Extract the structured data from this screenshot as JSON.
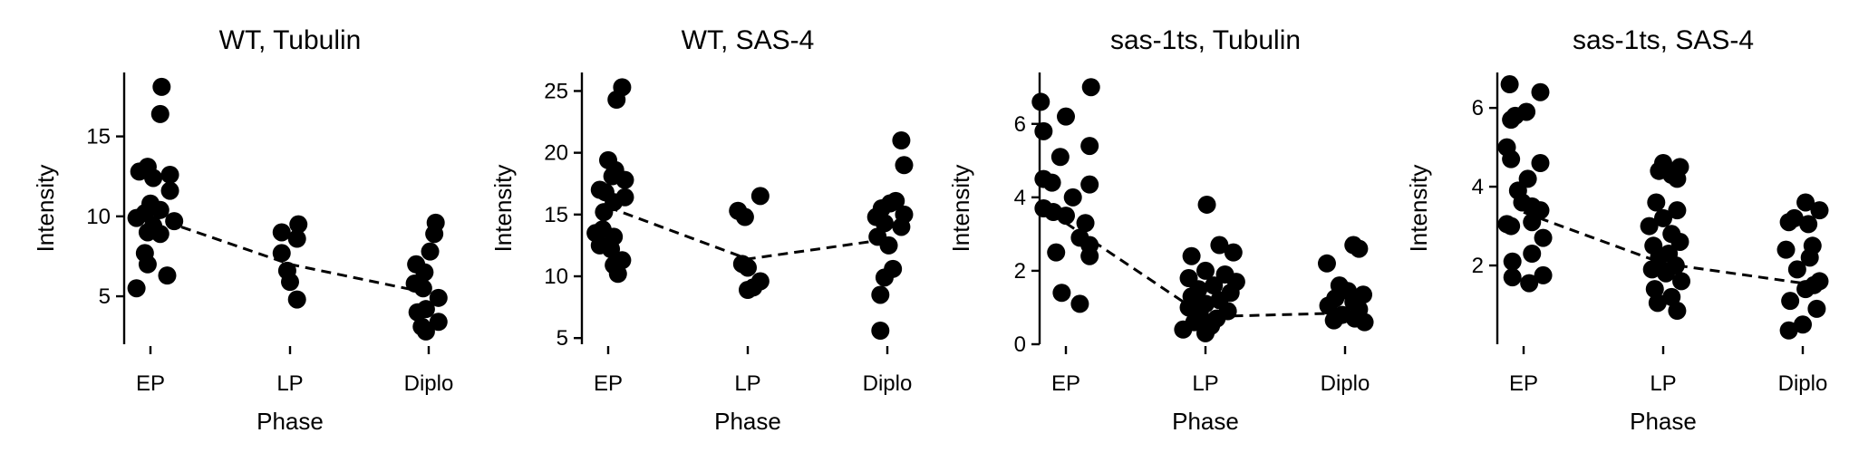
{
  "colors": {
    "points": "#000000",
    "axis": "#000000",
    "trend": "#000000"
  },
  "chart_data": [
    {
      "type": "scatter",
      "title": "WT, Tubulin",
      "xlabel": "Phase",
      "ylabel": "Intensity",
      "categories": [
        "EP",
        "LP",
        "Diplo"
      ],
      "ylim": [
        2.0,
        19.0
      ],
      "yticks": [
        5,
        10,
        15
      ],
      "trend_means": [
        10.0,
        7.0,
        5.2
      ],
      "points": [
        {
          "cat": 0,
          "y": 18.1,
          "j": 0.08
        },
        {
          "cat": 0,
          "y": 16.4,
          "j": 0.07
        },
        {
          "cat": 0,
          "y": 13.1,
          "j": -0.02
        },
        {
          "cat": 0,
          "y": 12.8,
          "j": -0.08
        },
        {
          "cat": 0,
          "y": 12.6,
          "j": 0.14
        },
        {
          "cat": 0,
          "y": 12.4,
          "j": 0.02
        },
        {
          "cat": 0,
          "y": 11.6,
          "j": 0.14
        },
        {
          "cat": 0,
          "y": 10.8,
          "j": 0.0
        },
        {
          "cat": 0,
          "y": 10.4,
          "j": 0.07
        },
        {
          "cat": 0,
          "y": 10.2,
          "j": -0.04
        },
        {
          "cat": 0,
          "y": 9.9,
          "j": -0.1
        },
        {
          "cat": 0,
          "y": 9.7,
          "j": 0.17
        },
        {
          "cat": 0,
          "y": 9.4,
          "j": 0.02
        },
        {
          "cat": 0,
          "y": 9.0,
          "j": -0.02
        },
        {
          "cat": 0,
          "y": 8.9,
          "j": 0.07
        },
        {
          "cat": 0,
          "y": 7.7,
          "j": -0.04
        },
        {
          "cat": 0,
          "y": 7.0,
          "j": -0.02
        },
        {
          "cat": 0,
          "y": 6.3,
          "j": 0.12
        },
        {
          "cat": 0,
          "y": 5.5,
          "j": -0.1
        },
        {
          "cat": 1,
          "y": 9.5,
          "j": 0.06
        },
        {
          "cat": 1,
          "y": 9.0,
          "j": -0.06
        },
        {
          "cat": 1,
          "y": 8.6,
          "j": 0.05
        },
        {
          "cat": 1,
          "y": 7.7,
          "j": -0.06
        },
        {
          "cat": 1,
          "y": 6.6,
          "j": -0.02
        },
        {
          "cat": 1,
          "y": 5.9,
          "j": 0.0
        },
        {
          "cat": 1,
          "y": 4.8,
          "j": 0.05
        },
        {
          "cat": 2,
          "y": 9.6,
          "j": 0.05
        },
        {
          "cat": 2,
          "y": 8.9,
          "j": 0.04
        },
        {
          "cat": 2,
          "y": 7.8,
          "j": 0.01
        },
        {
          "cat": 2,
          "y": 7.0,
          "j": -0.09
        },
        {
          "cat": 2,
          "y": 6.5,
          "j": -0.03
        },
        {
          "cat": 2,
          "y": 5.8,
          "j": -0.1
        },
        {
          "cat": 2,
          "y": 5.5,
          "j": -0.04
        },
        {
          "cat": 2,
          "y": 4.9,
          "j": 0.07
        },
        {
          "cat": 2,
          "y": 4.2,
          "j": -0.02
        },
        {
          "cat": 2,
          "y": 4.0,
          "j": -0.08
        },
        {
          "cat": 2,
          "y": 3.4,
          "j": 0.07
        },
        {
          "cat": 2,
          "y": 3.1,
          "j": -0.05
        },
        {
          "cat": 2,
          "y": 2.8,
          "j": -0.02
        }
      ]
    },
    {
      "type": "scatter",
      "title": "WT, SAS-4",
      "xlabel": "Phase",
      "ylabel": "Intensity",
      "categories": [
        "EP",
        "LP",
        "Diplo"
      ],
      "ylim": [
        4.5,
        26.5
      ],
      "yticks": [
        5,
        10,
        15,
        20,
        25
      ],
      "trend_means": [
        15.6,
        11.4,
        13.0
      ],
      "points": [
        {
          "cat": 0,
          "y": 25.3,
          "j": 0.1
        },
        {
          "cat": 0,
          "y": 24.3,
          "j": 0.06
        },
        {
          "cat": 0,
          "y": 19.4,
          "j": 0.0
        },
        {
          "cat": 0,
          "y": 18.6,
          "j": 0.05
        },
        {
          "cat": 0,
          "y": 18.1,
          "j": 0.03
        },
        {
          "cat": 0,
          "y": 17.8,
          "j": 0.12
        },
        {
          "cat": 0,
          "y": 17.0,
          "j": -0.06
        },
        {
          "cat": 0,
          "y": 16.8,
          "j": -0.02
        },
        {
          "cat": 0,
          "y": 16.4,
          "j": 0.12
        },
        {
          "cat": 0,
          "y": 16.0,
          "j": 0.04
        },
        {
          "cat": 0,
          "y": 15.2,
          "j": -0.03
        },
        {
          "cat": 0,
          "y": 13.8,
          "j": -0.04
        },
        {
          "cat": 0,
          "y": 13.5,
          "j": -0.09
        },
        {
          "cat": 0,
          "y": 13.2,
          "j": 0.04
        },
        {
          "cat": 0,
          "y": 12.5,
          "j": -0.06
        },
        {
          "cat": 0,
          "y": 12.2,
          "j": 0.02
        },
        {
          "cat": 0,
          "y": 11.3,
          "j": 0.1
        },
        {
          "cat": 0,
          "y": 10.9,
          "j": 0.04
        },
        {
          "cat": 0,
          "y": 10.2,
          "j": 0.07
        },
        {
          "cat": 1,
          "y": 16.5,
          "j": 0.09
        },
        {
          "cat": 1,
          "y": 15.3,
          "j": -0.07
        },
        {
          "cat": 1,
          "y": 14.8,
          "j": -0.02
        },
        {
          "cat": 1,
          "y": 11.0,
          "j": -0.04
        },
        {
          "cat": 1,
          "y": 10.7,
          "j": 0.0
        },
        {
          "cat": 1,
          "y": 9.6,
          "j": 0.09
        },
        {
          "cat": 1,
          "y": 9.1,
          "j": 0.04
        },
        {
          "cat": 1,
          "y": 8.9,
          "j": 0.0
        },
        {
          "cat": 2,
          "y": 21.0,
          "j": 0.1
        },
        {
          "cat": 2,
          "y": 19.0,
          "j": 0.12
        },
        {
          "cat": 2,
          "y": 16.1,
          "j": 0.06
        },
        {
          "cat": 2,
          "y": 15.9,
          "j": 0.02
        },
        {
          "cat": 2,
          "y": 15.5,
          "j": -0.04
        },
        {
          "cat": 2,
          "y": 15.0,
          "j": 0.12
        },
        {
          "cat": 2,
          "y": 14.8,
          "j": -0.08
        },
        {
          "cat": 2,
          "y": 14.3,
          "j": -0.02
        },
        {
          "cat": 2,
          "y": 14.0,
          "j": 0.1
        },
        {
          "cat": 2,
          "y": 13.2,
          "j": -0.07
        },
        {
          "cat": 2,
          "y": 12.5,
          "j": 0.01
        },
        {
          "cat": 2,
          "y": 10.6,
          "j": 0.04
        },
        {
          "cat": 2,
          "y": 9.9,
          "j": -0.02
        },
        {
          "cat": 2,
          "y": 8.5,
          "j": -0.05
        },
        {
          "cat": 2,
          "y": 5.6,
          "j": -0.05
        }
      ]
    },
    {
      "type": "scatter",
      "title": "sas-1ts, Tubulin",
      "xlabel": "Phase",
      "ylabel": "Intensity",
      "categories": [
        "EP",
        "LP",
        "Diplo"
      ],
      "ylim": [
        0.0,
        7.4
      ],
      "yticks": [
        0,
        2,
        4,
        6
      ],
      "trend_means": [
        3.3,
        0.75,
        0.85
      ],
      "points": [
        {
          "cat": 0,
          "y": 7.0,
          "j": 0.18
        },
        {
          "cat": 0,
          "y": 6.6,
          "j": -0.18
        },
        {
          "cat": 0,
          "y": 6.2,
          "j": 0.0
        },
        {
          "cat": 0,
          "y": 5.8,
          "j": -0.16
        },
        {
          "cat": 0,
          "y": 5.4,
          "j": 0.17
        },
        {
          "cat": 0,
          "y": 5.1,
          "j": -0.04
        },
        {
          "cat": 0,
          "y": 4.5,
          "j": -0.16
        },
        {
          "cat": 0,
          "y": 4.4,
          "j": -0.1
        },
        {
          "cat": 0,
          "y": 4.35,
          "j": 0.17
        },
        {
          "cat": 0,
          "y": 4.0,
          "j": 0.05
        },
        {
          "cat": 0,
          "y": 3.7,
          "j": -0.16
        },
        {
          "cat": 0,
          "y": 3.6,
          "j": -0.09
        },
        {
          "cat": 0,
          "y": 3.5,
          "j": 0.0
        },
        {
          "cat": 0,
          "y": 3.3,
          "j": 0.14
        },
        {
          "cat": 0,
          "y": 2.9,
          "j": 0.1
        },
        {
          "cat": 0,
          "y": 2.7,
          "j": 0.17
        },
        {
          "cat": 0,
          "y": 2.5,
          "j": -0.07
        },
        {
          "cat": 0,
          "y": 2.4,
          "j": 0.17
        },
        {
          "cat": 0,
          "y": 1.4,
          "j": -0.03
        },
        {
          "cat": 0,
          "y": 1.1,
          "j": 0.1
        },
        {
          "cat": 1,
          "y": 3.8,
          "j": 0.01
        },
        {
          "cat": 1,
          "y": 2.7,
          "j": 0.1
        },
        {
          "cat": 1,
          "y": 2.5,
          "j": 0.2
        },
        {
          "cat": 1,
          "y": 2.4,
          "j": -0.1
        },
        {
          "cat": 1,
          "y": 2.0,
          "j": 0.0
        },
        {
          "cat": 1,
          "y": 1.9,
          "j": 0.14
        },
        {
          "cat": 1,
          "y": 1.8,
          "j": -0.12
        },
        {
          "cat": 1,
          "y": 1.7,
          "j": 0.22
        },
        {
          "cat": 1,
          "y": 1.6,
          "j": 0.06
        },
        {
          "cat": 1,
          "y": 1.5,
          "j": -0.05
        },
        {
          "cat": 1,
          "y": 1.4,
          "j": 0.18
        },
        {
          "cat": 1,
          "y": 1.3,
          "j": -0.1
        },
        {
          "cat": 1,
          "y": 1.2,
          "j": 0.1
        },
        {
          "cat": 1,
          "y": 1.1,
          "j": 0.0
        },
        {
          "cat": 1,
          "y": 1.0,
          "j": -0.12
        },
        {
          "cat": 1,
          "y": 0.9,
          "j": 0.16
        },
        {
          "cat": 1,
          "y": 0.8,
          "j": -0.04
        },
        {
          "cat": 1,
          "y": 0.7,
          "j": 0.08
        },
        {
          "cat": 1,
          "y": 0.6,
          "j": -0.08
        },
        {
          "cat": 1,
          "y": 0.5,
          "j": 0.04
        },
        {
          "cat": 1,
          "y": 0.4,
          "j": -0.16
        },
        {
          "cat": 1,
          "y": 0.3,
          "j": 0.0
        },
        {
          "cat": 2,
          "y": 2.7,
          "j": 0.06
        },
        {
          "cat": 2,
          "y": 2.6,
          "j": 0.1
        },
        {
          "cat": 2,
          "y": 2.2,
          "j": -0.13
        },
        {
          "cat": 2,
          "y": 1.6,
          "j": -0.04
        },
        {
          "cat": 2,
          "y": 1.45,
          "j": 0.02
        },
        {
          "cat": 2,
          "y": 1.35,
          "j": 0.13
        },
        {
          "cat": 2,
          "y": 1.25,
          "j": -0.07
        },
        {
          "cat": 2,
          "y": 1.15,
          "j": 0.06
        },
        {
          "cat": 2,
          "y": 1.05,
          "j": -0.12
        },
        {
          "cat": 2,
          "y": 0.95,
          "j": 0.1
        },
        {
          "cat": 2,
          "y": 0.8,
          "j": -0.02
        },
        {
          "cat": 2,
          "y": 0.7,
          "j": 0.07
        },
        {
          "cat": 2,
          "y": 0.65,
          "j": -0.08
        },
        {
          "cat": 2,
          "y": 0.6,
          "j": 0.14
        }
      ]
    },
    {
      "type": "scatter",
      "title": "sas-1ts, SAS-4",
      "xlabel": "Phase",
      "ylabel": "Intensity",
      "categories": [
        "EP",
        "LP",
        "Diplo"
      ],
      "ylim": [
        0.0,
        6.9
      ],
      "yticks": [
        2,
        4,
        6
      ],
      "trend_means": [
        3.35,
        2.05,
        1.55
      ],
      "points": [
        {
          "cat": 0,
          "y": 6.6,
          "j": -0.1
        },
        {
          "cat": 0,
          "y": 6.4,
          "j": 0.12
        },
        {
          "cat": 0,
          "y": 5.9,
          "j": 0.02
        },
        {
          "cat": 0,
          "y": 5.8,
          "j": -0.06
        },
        {
          "cat": 0,
          "y": 5.7,
          "j": -0.09
        },
        {
          "cat": 0,
          "y": 5.0,
          "j": -0.12
        },
        {
          "cat": 0,
          "y": 4.7,
          "j": -0.09
        },
        {
          "cat": 0,
          "y": 4.6,
          "j": 0.12
        },
        {
          "cat": 0,
          "y": 4.2,
          "j": 0.03
        },
        {
          "cat": 0,
          "y": 3.9,
          "j": -0.04
        },
        {
          "cat": 0,
          "y": 3.6,
          "j": -0.01
        },
        {
          "cat": 0,
          "y": 3.5,
          "j": 0.06
        },
        {
          "cat": 0,
          "y": 3.4,
          "j": 0.12
        },
        {
          "cat": 0,
          "y": 3.1,
          "j": 0.06
        },
        {
          "cat": 0,
          "y": 3.05,
          "j": -0.12
        },
        {
          "cat": 0,
          "y": 3.0,
          "j": -0.09
        },
        {
          "cat": 0,
          "y": 2.7,
          "j": 0.14
        },
        {
          "cat": 0,
          "y": 2.3,
          "j": 0.06
        },
        {
          "cat": 0,
          "y": 2.1,
          "j": -0.08
        },
        {
          "cat": 0,
          "y": 1.75,
          "j": 0.14
        },
        {
          "cat": 0,
          "y": 1.7,
          "j": -0.08
        },
        {
          "cat": 0,
          "y": 1.55,
          "j": 0.04
        },
        {
          "cat": 1,
          "y": 4.6,
          "j": 0.0
        },
        {
          "cat": 1,
          "y": 4.5,
          "j": 0.12
        },
        {
          "cat": 1,
          "y": 4.4,
          "j": -0.03
        },
        {
          "cat": 1,
          "y": 4.3,
          "j": 0.06
        },
        {
          "cat": 1,
          "y": 4.2,
          "j": 0.1
        },
        {
          "cat": 1,
          "y": 3.6,
          "j": -0.05
        },
        {
          "cat": 1,
          "y": 3.4,
          "j": 0.1
        },
        {
          "cat": 1,
          "y": 3.2,
          "j": 0.0
        },
        {
          "cat": 1,
          "y": 3.0,
          "j": -0.1
        },
        {
          "cat": 1,
          "y": 2.8,
          "j": 0.06
        },
        {
          "cat": 1,
          "y": 2.6,
          "j": 0.12
        },
        {
          "cat": 1,
          "y": 2.5,
          "j": -0.07
        },
        {
          "cat": 1,
          "y": 2.3,
          "j": 0.04
        },
        {
          "cat": 1,
          "y": 2.2,
          "j": -0.03
        },
        {
          "cat": 1,
          "y": 2.0,
          "j": 0.09
        },
        {
          "cat": 1,
          "y": 1.9,
          "j": -0.08
        },
        {
          "cat": 1,
          "y": 1.8,
          "j": 0.02
        },
        {
          "cat": 1,
          "y": 1.6,
          "j": 0.13
        },
        {
          "cat": 1,
          "y": 1.4,
          "j": -0.06
        },
        {
          "cat": 1,
          "y": 1.2,
          "j": 0.06
        },
        {
          "cat": 1,
          "y": 1.05,
          "j": -0.04
        },
        {
          "cat": 1,
          "y": 0.85,
          "j": 0.1
        },
        {
          "cat": 2,
          "y": 3.6,
          "j": 0.02
        },
        {
          "cat": 2,
          "y": 3.4,
          "j": 0.12
        },
        {
          "cat": 2,
          "y": 3.2,
          "j": -0.06
        },
        {
          "cat": 2,
          "y": 3.1,
          "j": -0.1
        },
        {
          "cat": 2,
          "y": 3.05,
          "j": 0.04
        },
        {
          "cat": 2,
          "y": 2.5,
          "j": 0.07
        },
        {
          "cat": 2,
          "y": 2.4,
          "j": -0.12
        },
        {
          "cat": 2,
          "y": 2.2,
          "j": 0.05
        },
        {
          "cat": 2,
          "y": 1.9,
          "j": -0.04
        },
        {
          "cat": 2,
          "y": 1.6,
          "j": 0.12
        },
        {
          "cat": 2,
          "y": 1.5,
          "j": 0.08
        },
        {
          "cat": 2,
          "y": 1.4,
          "j": 0.02
        },
        {
          "cat": 2,
          "y": 1.1,
          "j": -0.09
        },
        {
          "cat": 2,
          "y": 0.9,
          "j": 0.1
        },
        {
          "cat": 2,
          "y": 0.5,
          "j": 0.0
        },
        {
          "cat": 2,
          "y": 0.35,
          "j": -0.1
        }
      ]
    }
  ]
}
